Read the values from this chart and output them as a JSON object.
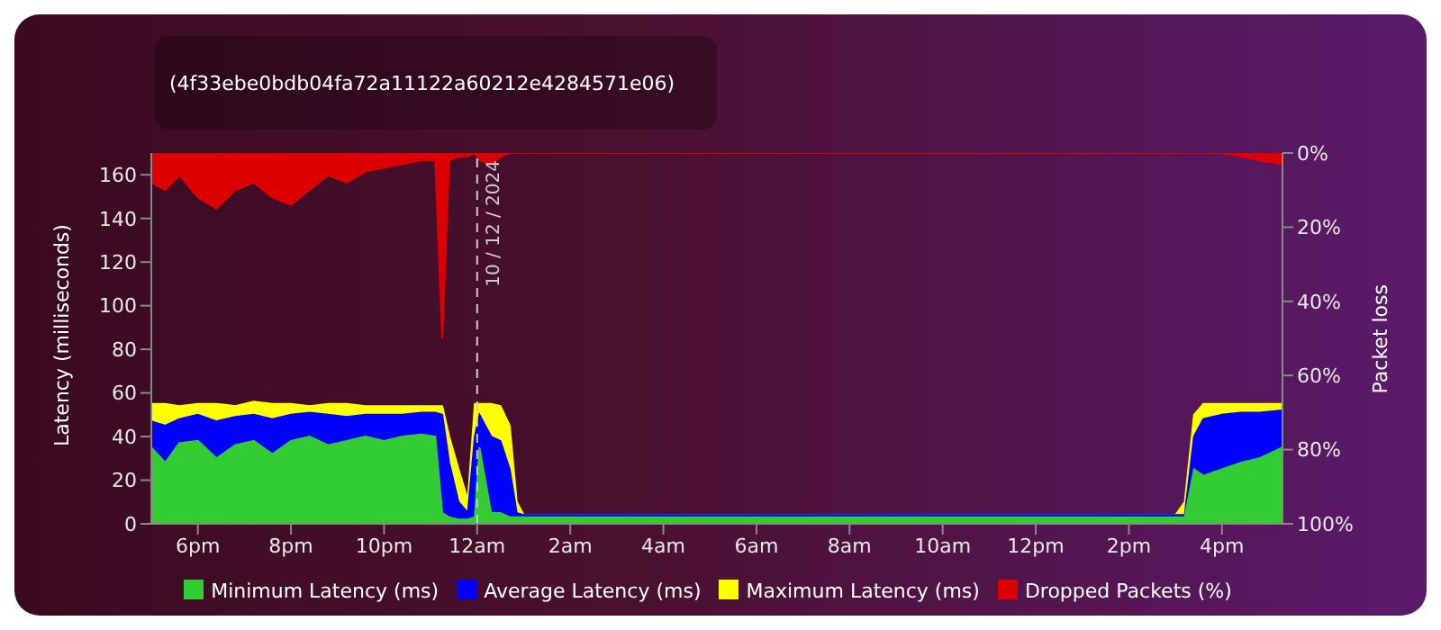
{
  "chart_data": {
    "type": "area",
    "subtitle": "(4f33ebe0bdb04fa72a11122a60212e4284571e06)",
    "ylabel": "Latency (milliseconds)",
    "y2label": "Packet loss",
    "x": [
      "2024-12-09T17:00",
      "2024-12-09T17:18",
      "2024-12-09T17:36",
      "2024-12-09T18:00",
      "2024-12-09T18:24",
      "2024-12-09T18:48",
      "2024-12-09T19:12",
      "2024-12-09T19:36",
      "2024-12-09T20:00",
      "2024-12-09T20:24",
      "2024-12-09T20:48",
      "2024-12-09T21:12",
      "2024-12-09T21:36",
      "2024-12-09T22:00",
      "2024-12-09T22:24",
      "2024-12-09T22:48",
      "2024-12-09T23:06",
      "2024-12-09T23:15",
      "2024-12-09T23:24",
      "2024-12-09T23:36",
      "2024-12-09T23:48",
      "2024-12-09T23:57",
      "2024-12-10T00:03",
      "2024-12-10T00:18",
      "2024-12-10T00:30",
      "2024-12-10T00:42",
      "2024-12-10T00:51",
      "2024-12-10T01:00",
      "2024-12-10T02:00",
      "2024-12-10T04:00",
      "2024-12-10T06:00",
      "2024-12-10T08:00",
      "2024-12-10T10:00",
      "2024-12-10T12:00",
      "2024-12-10T14:00",
      "2024-12-10T15:00",
      "2024-12-10T15:12",
      "2024-12-10T15:24",
      "2024-12-10T15:36",
      "2024-12-10T16:00",
      "2024-12-10T16:24",
      "2024-12-10T16:48",
      "2024-12-10T17:18"
    ],
    "series": [
      {
        "name": "Minimum Latency (ms)",
        "color": "#33cc33",
        "values": [
          35,
          28,
          37,
          38,
          30,
          36,
          38,
          32,
          38,
          40,
          36,
          38,
          40,
          38,
          40,
          41,
          40,
          5,
          3,
          2,
          2,
          3,
          35,
          5,
          5,
          3,
          3,
          3,
          3,
          3,
          3,
          3,
          3,
          3,
          3,
          3,
          3,
          25,
          22,
          25,
          28,
          30,
          35
        ]
      },
      {
        "name": "Average Latency (ms)",
        "color": "#0000ff",
        "values": [
          47,
          45,
          48,
          50,
          47,
          49,
          50,
          48,
          50,
          51,
          50,
          49,
          50,
          50,
          50,
          51,
          51,
          50,
          28,
          10,
          5,
          40,
          50,
          40,
          38,
          25,
          5,
          4,
          4,
          4,
          4,
          4,
          4,
          4,
          4,
          4,
          4,
          40,
          48,
          50,
          51,
          51,
          52
        ]
      },
      {
        "name": "Maximum Latency (ms)",
        "color": "#ffff00",
        "values": [
          55,
          55,
          54,
          55,
          55,
          54,
          56,
          55,
          55,
          54,
          55,
          55,
          54,
          54,
          54,
          54,
          54,
          54,
          40,
          25,
          11,
          55,
          55,
          55,
          54,
          45,
          10,
          4,
          4,
          4,
          4,
          4,
          4,
          4,
          4,
          4,
          10,
          50,
          55,
          55,
          55,
          55,
          55
        ]
      },
      {
        "name": "Dropped Packets (%)",
        "color": "#dd0000",
        "axis": "y2",
        "values": [
          8,
          10,
          6,
          12,
          15,
          10,
          8,
          12,
          14,
          10,
          6,
          8,
          5,
          4,
          3,
          2,
          2,
          50,
          2,
          1,
          1,
          0,
          2,
          3,
          1,
          0,
          0,
          0,
          0,
          0,
          0,
          0,
          0,
          0,
          0,
          0,
          0,
          0,
          0,
          0,
          1,
          2,
          3
        ]
      }
    ],
    "xlim": [
      "2024-12-09T17:00",
      "2024-12-10T17:18"
    ],
    "xticks": [
      {
        "value": "2024-12-09T18:00",
        "label": "6pm"
      },
      {
        "value": "2024-12-09T20:00",
        "label": "8pm"
      },
      {
        "value": "2024-12-09T22:00",
        "label": "10pm"
      },
      {
        "value": "2024-12-10T00:00",
        "label": "12am"
      },
      {
        "value": "2024-12-10T02:00",
        "label": "2am"
      },
      {
        "value": "2024-12-10T04:00",
        "label": "4am"
      },
      {
        "value": "2024-12-10T06:00",
        "label": "6am"
      },
      {
        "value": "2024-12-10T08:00",
        "label": "8am"
      },
      {
        "value": "2024-12-10T10:00",
        "label": "10am"
      },
      {
        "value": "2024-12-10T12:00",
        "label": "12pm"
      },
      {
        "value": "2024-12-10T14:00",
        "label": "2pm"
      },
      {
        "value": "2024-12-10T16:00",
        "label": "4pm"
      }
    ],
    "ylim": [
      0,
      170
    ],
    "yticks": [
      0,
      20,
      40,
      60,
      80,
      100,
      120,
      140,
      160
    ],
    "y2lim": [
      100,
      0
    ],
    "y2ticks": [
      {
        "value": 0,
        "label": "0%"
      },
      {
        "value": 20,
        "label": "20%"
      },
      {
        "value": 40,
        "label": "40%"
      },
      {
        "value": 60,
        "label": "60%"
      },
      {
        "value": 80,
        "label": "80%"
      },
      {
        "value": 100,
        "label": "100%"
      }
    ],
    "ref_lines": [
      {
        "axis": "x",
        "value": "2024-12-10T00:00",
        "label": "10 / 12 / 2024",
        "color": "#cccccc",
        "line_style": "dashed"
      }
    ],
    "legend": "bottom"
  }
}
